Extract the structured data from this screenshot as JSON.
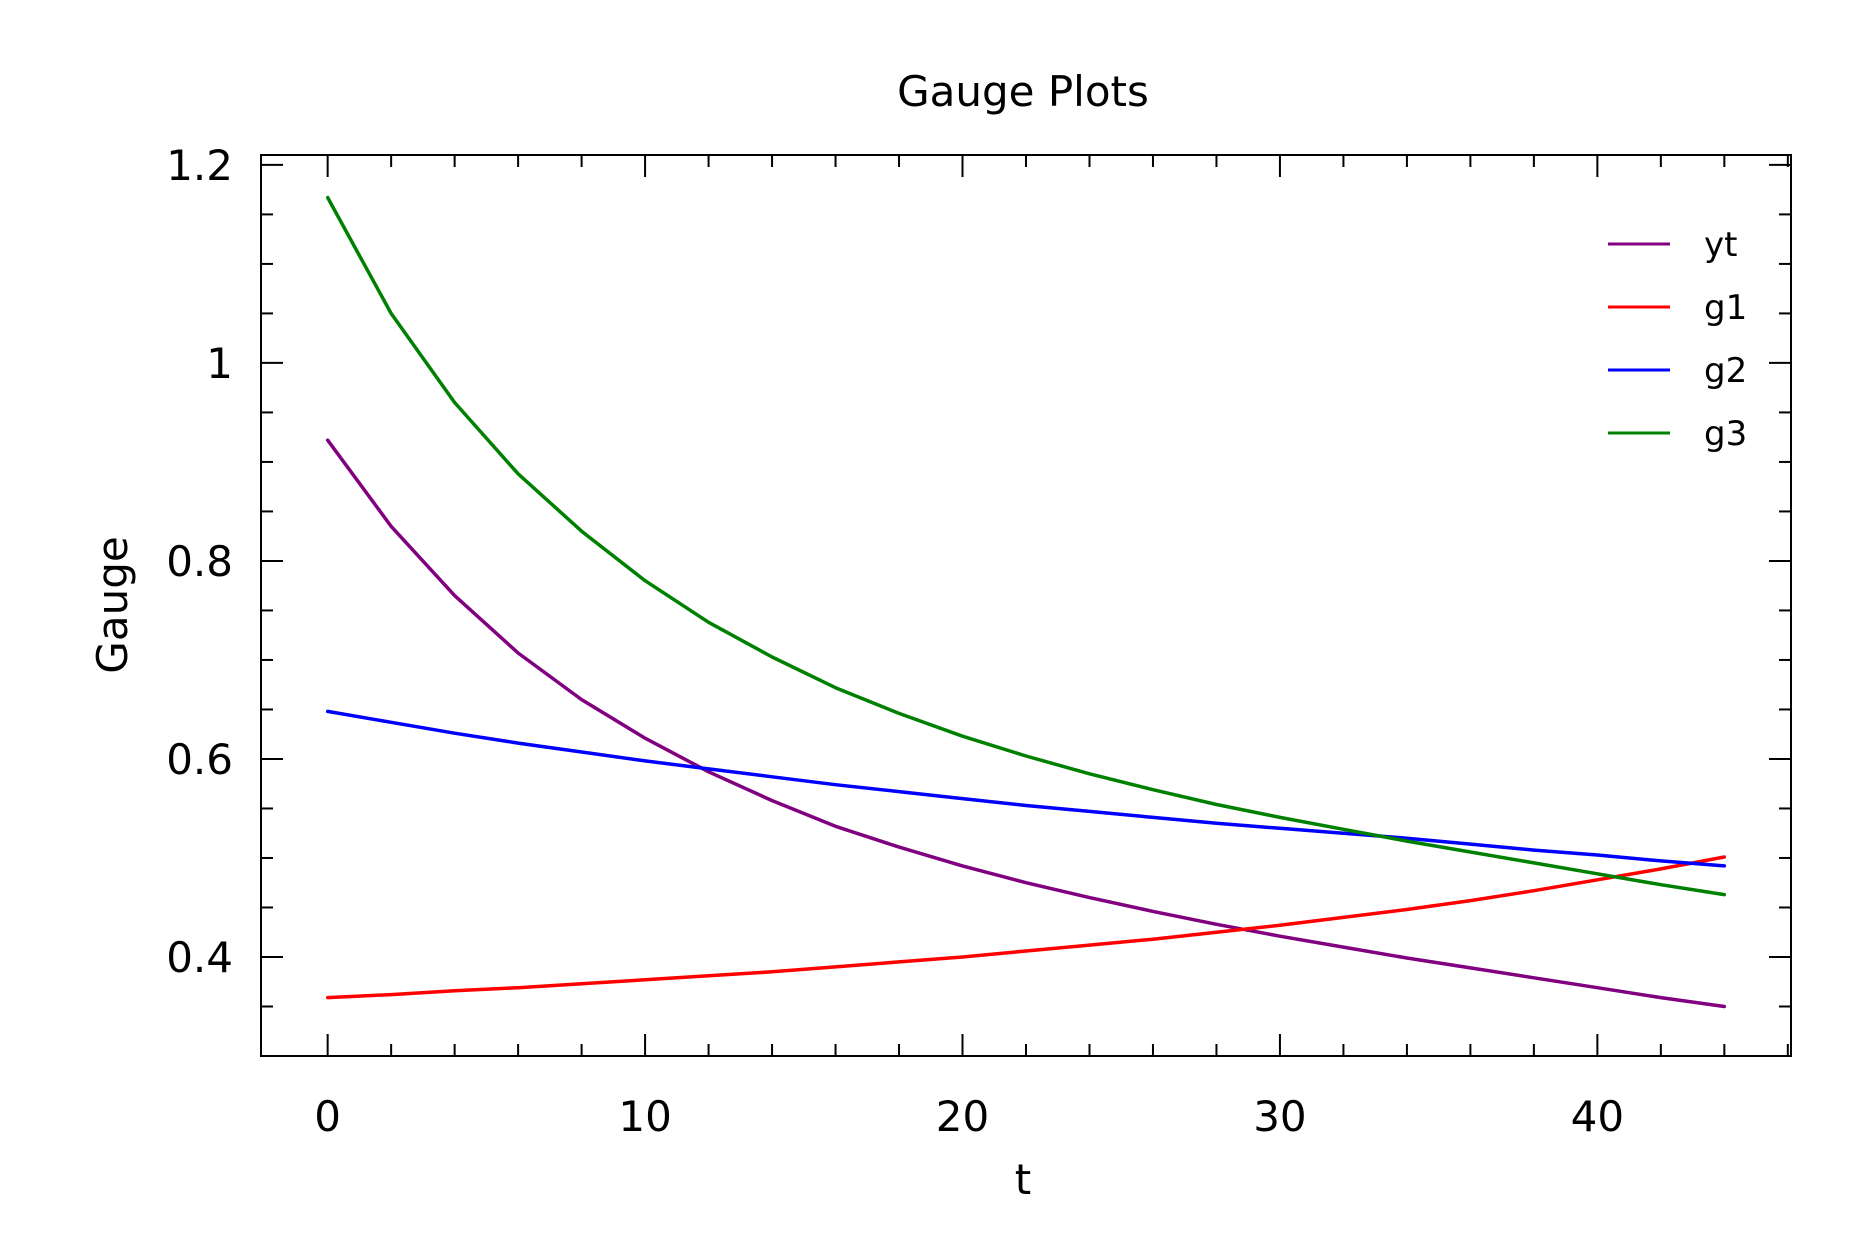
{
  "chart_data": {
    "type": "line",
    "title": "Gauge Plots",
    "xlabel": "t",
    "ylabel": "Gauge",
    "xlim": [
      -2.1,
      46.1
    ],
    "ylim": [
      0.3,
      1.21
    ],
    "xticks": [
      0,
      10,
      20,
      30,
      40
    ],
    "xtick_labels": [
      "0",
      "10",
      "20",
      "30",
      "40"
    ],
    "xminor_step": 2,
    "yticks": [
      0.4,
      0.6,
      0.8,
      1.0,
      1.2
    ],
    "ytick_labels": [
      "0.4",
      "0.6",
      "0.8",
      "1",
      "1.2"
    ],
    "yminor_step": 0.05,
    "grid": false,
    "legend_position": "top-right",
    "x": [
      0,
      2,
      4,
      6,
      8,
      10,
      12,
      14,
      16,
      18,
      20,
      22,
      24,
      26,
      28,
      30,
      32,
      34,
      36,
      38,
      40,
      42,
      44
    ],
    "series": [
      {
        "name": "yt",
        "color": "#800080",
        "values": [
          0.922,
          0.835,
          0.765,
          0.707,
          0.66,
          0.621,
          0.587,
          0.558,
          0.532,
          0.511,
          0.492,
          0.475,
          0.46,
          0.446,
          0.433,
          0.421,
          0.41,
          0.399,
          0.389,
          0.379,
          0.369,
          0.359,
          0.35
        ]
      },
      {
        "name": "g1",
        "color": "#ff0000",
        "values": [
          0.359,
          0.362,
          0.366,
          0.369,
          0.373,
          0.377,
          0.381,
          0.385,
          0.39,
          0.395,
          0.4,
          0.406,
          0.412,
          0.418,
          0.425,
          0.432,
          0.44,
          0.448,
          0.457,
          0.467,
          0.478,
          0.489,
          0.501
        ]
      },
      {
        "name": "g2",
        "color": "#0000ff",
        "values": [
          0.648,
          0.637,
          0.626,
          0.616,
          0.607,
          0.598,
          0.59,
          0.582,
          0.574,
          0.567,
          0.56,
          0.553,
          0.547,
          0.541,
          0.535,
          0.53,
          0.525,
          0.52,
          0.514,
          0.508,
          0.503,
          0.497,
          0.492
        ]
      },
      {
        "name": "g3",
        "color": "#008000",
        "values": [
          1.167,
          1.05,
          0.96,
          0.888,
          0.83,
          0.78,
          0.738,
          0.703,
          0.672,
          0.646,
          0.623,
          0.603,
          0.585,
          0.569,
          0.554,
          0.541,
          0.529,
          0.517,
          0.506,
          0.495,
          0.484,
          0.473,
          0.463
        ]
      }
    ]
  }
}
